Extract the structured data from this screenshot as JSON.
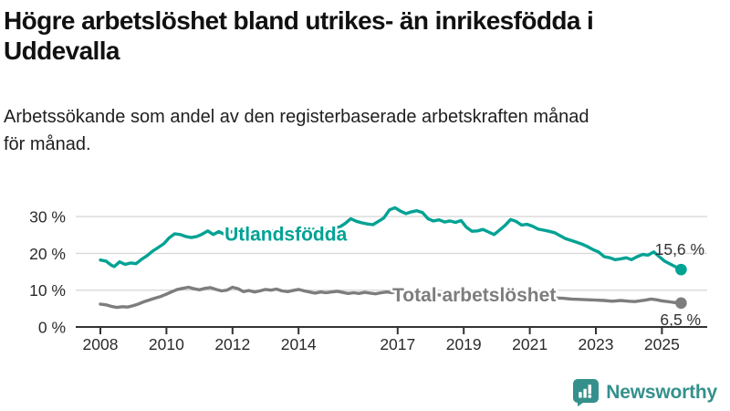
{
  "header": {
    "title_lines": [
      "Högre arbetslöshet bland utrikes- än inrikesfödda i",
      "Uddevalla"
    ],
    "subtitle_lines": [
      "Arbetssökande som andel av den registerbaserade arbetskraften månad",
      "för månad."
    ]
  },
  "branding": {
    "logo_text": "Newsworthy",
    "logo_icon": "bar-chart-speech-bubble-icon",
    "logo_color": "#35908c"
  },
  "colors": {
    "utlandsfodda_line": "#00a294",
    "total_line": "#7d7d7d",
    "gridline": "#d9d9d9",
    "axis": "#333333",
    "tick_text": "#2b2b2b",
    "value_label_text": "#333333"
  },
  "chart_data": {
    "type": "line",
    "x_axis": {
      "base_year": 2008,
      "ticks": [
        2008,
        2010,
        2012,
        2014,
        2017,
        2019,
        2021,
        2023,
        2025
      ]
    },
    "y_axis": {
      "ticks": [
        0,
        10,
        20,
        30
      ],
      "suffix": " %",
      "range": [
        0,
        33.5
      ],
      "gridlines": true
    },
    "series": [
      {
        "name": "Utlandsfödda",
        "color": "#00a294",
        "label_pos": {
          "year": 2011.76,
          "value": 23.5
        },
        "end_value": 15.6,
        "end_label": "15,6 %",
        "end_label_anchor": {
          "year": 2026.29,
          "value": 19.6
        },
        "points": [
          [
            2008.0,
            18.2
          ],
          [
            2008.17,
            17.9
          ],
          [
            2008.33,
            16.8
          ],
          [
            2008.42,
            16.4
          ],
          [
            2008.58,
            17.7
          ],
          [
            2008.75,
            17.0
          ],
          [
            2008.92,
            17.4
          ],
          [
            2009.08,
            17.2
          ],
          [
            2009.25,
            18.4
          ],
          [
            2009.42,
            19.4
          ],
          [
            2009.58,
            20.6
          ],
          [
            2009.75,
            21.6
          ],
          [
            2009.92,
            22.6
          ],
          [
            2010.08,
            24.2
          ],
          [
            2010.25,
            25.3
          ],
          [
            2010.42,
            25.1
          ],
          [
            2010.58,
            24.6
          ],
          [
            2010.75,
            24.3
          ],
          [
            2010.92,
            24.6
          ],
          [
            2011.08,
            25.2
          ],
          [
            2011.25,
            26.1
          ],
          [
            2011.42,
            25.1
          ],
          [
            2011.58,
            25.9
          ],
          [
            2011.75,
            25.2
          ],
          [
            2011.92,
            25.7
          ],
          [
            2012.08,
            26.2
          ],
          [
            2012.25,
            25.7
          ],
          [
            2012.42,
            26.1
          ],
          [
            2012.58,
            25.7
          ],
          [
            2012.75,
            26.0
          ],
          [
            2012.92,
            25.7
          ],
          [
            2013.08,
            26.3
          ],
          [
            2013.25,
            26.0
          ],
          [
            2013.42,
            26.4
          ],
          [
            2013.58,
            25.9
          ],
          [
            2013.75,
            26.3
          ],
          [
            2013.92,
            26.0
          ],
          [
            2014.08,
            26.4
          ],
          [
            2014.25,
            26.1
          ],
          [
            2014.42,
            26.6
          ],
          [
            2014.58,
            26.2
          ],
          [
            2014.75,
            26.5
          ],
          [
            2014.92,
            26.3
          ],
          [
            2015.08,
            26.9
          ],
          [
            2015.25,
            27.2
          ],
          [
            2015.42,
            28.2
          ],
          [
            2015.58,
            29.4
          ],
          [
            2015.75,
            28.7
          ],
          [
            2015.92,
            28.3
          ],
          [
            2016.08,
            28.0
          ],
          [
            2016.25,
            27.8
          ],
          [
            2016.42,
            28.7
          ],
          [
            2016.58,
            29.6
          ],
          [
            2016.75,
            31.8
          ],
          [
            2016.92,
            32.4
          ],
          [
            2017.08,
            31.5
          ],
          [
            2017.25,
            30.8
          ],
          [
            2017.42,
            31.3
          ],
          [
            2017.58,
            31.6
          ],
          [
            2017.75,
            31.1
          ],
          [
            2017.92,
            29.4
          ],
          [
            2018.08,
            28.8
          ],
          [
            2018.25,
            29.1
          ],
          [
            2018.42,
            28.5
          ],
          [
            2018.58,
            28.8
          ],
          [
            2018.75,
            28.4
          ],
          [
            2018.92,
            28.9
          ],
          [
            2019.08,
            27.1
          ],
          [
            2019.25,
            26.0
          ],
          [
            2019.42,
            26.1
          ],
          [
            2019.58,
            26.5
          ],
          [
            2019.75,
            25.8
          ],
          [
            2019.92,
            25.1
          ],
          [
            2020.08,
            26.3
          ],
          [
            2020.25,
            27.6
          ],
          [
            2020.42,
            29.2
          ],
          [
            2020.58,
            28.7
          ],
          [
            2020.75,
            27.7
          ],
          [
            2020.92,
            27.9
          ],
          [
            2021.08,
            27.4
          ],
          [
            2021.25,
            26.6
          ],
          [
            2021.42,
            26.3
          ],
          [
            2021.58,
            26.0
          ],
          [
            2021.75,
            25.6
          ],
          [
            2021.92,
            24.8
          ],
          [
            2022.08,
            24.0
          ],
          [
            2022.25,
            23.5
          ],
          [
            2022.42,
            23.0
          ],
          [
            2022.58,
            22.5
          ],
          [
            2022.75,
            21.8
          ],
          [
            2022.92,
            21.0
          ],
          [
            2023.08,
            20.4
          ],
          [
            2023.25,
            19.1
          ],
          [
            2023.42,
            18.8
          ],
          [
            2023.58,
            18.3
          ],
          [
            2023.75,
            18.5
          ],
          [
            2023.92,
            18.8
          ],
          [
            2024.08,
            18.3
          ],
          [
            2024.25,
            19.1
          ],
          [
            2024.42,
            19.7
          ],
          [
            2024.58,
            19.5
          ],
          [
            2024.75,
            20.4
          ],
          [
            2024.92,
            19.1
          ],
          [
            2025.08,
            17.9
          ],
          [
            2025.25,
            17.1
          ],
          [
            2025.42,
            16.3
          ],
          [
            2025.58,
            15.6
          ]
        ]
      },
      {
        "name": "Total arbetslöshet",
        "color": "#7d7d7d",
        "label_pos": {
          "year": 2016.84,
          "value": 6.95
        },
        "end_value": 6.5,
        "end_label": "6,5 %",
        "end_label_anchor": {
          "year": 2026.18,
          "value": 0.5
        },
        "points": [
          [
            2008.0,
            6.2
          ],
          [
            2008.17,
            6.0
          ],
          [
            2008.33,
            5.6
          ],
          [
            2008.5,
            5.3
          ],
          [
            2008.67,
            5.5
          ],
          [
            2008.83,
            5.4
          ],
          [
            2009.0,
            5.8
          ],
          [
            2009.17,
            6.3
          ],
          [
            2009.33,
            6.9
          ],
          [
            2009.5,
            7.4
          ],
          [
            2009.67,
            7.9
          ],
          [
            2009.83,
            8.3
          ],
          [
            2010.0,
            8.9
          ],
          [
            2010.17,
            9.6
          ],
          [
            2010.33,
            10.2
          ],
          [
            2010.5,
            10.5
          ],
          [
            2010.67,
            10.8
          ],
          [
            2010.83,
            10.4
          ],
          [
            2011.0,
            10.1
          ],
          [
            2011.17,
            10.5
          ],
          [
            2011.33,
            10.7
          ],
          [
            2011.5,
            10.2
          ],
          [
            2011.67,
            9.8
          ],
          [
            2011.83,
            10.0
          ],
          [
            2012.0,
            10.8
          ],
          [
            2012.17,
            10.4
          ],
          [
            2012.33,
            9.6
          ],
          [
            2012.5,
            9.9
          ],
          [
            2012.67,
            9.5
          ],
          [
            2012.83,
            9.8
          ],
          [
            2013.0,
            10.2
          ],
          [
            2013.17,
            10.0
          ],
          [
            2013.33,
            10.3
          ],
          [
            2013.5,
            9.8
          ],
          [
            2013.67,
            9.6
          ],
          [
            2013.83,
            9.9
          ],
          [
            2014.0,
            10.2
          ],
          [
            2014.17,
            9.8
          ],
          [
            2014.33,
            9.5
          ],
          [
            2014.5,
            9.2
          ],
          [
            2014.67,
            9.5
          ],
          [
            2014.83,
            9.3
          ],
          [
            2015.0,
            9.5
          ],
          [
            2015.17,
            9.7
          ],
          [
            2015.33,
            9.4
          ],
          [
            2015.5,
            9.1
          ],
          [
            2015.67,
            9.3
          ],
          [
            2015.83,
            9.1
          ],
          [
            2016.0,
            9.4
          ],
          [
            2016.17,
            9.2
          ],
          [
            2016.33,
            9.0
          ],
          [
            2016.5,
            9.3
          ],
          [
            2016.67,
            9.5
          ],
          [
            2016.83,
            9.3
          ],
          [
            2017.0,
            9.8
          ],
          [
            2017.17,
            9.6
          ],
          [
            2017.33,
            9.4
          ],
          [
            2017.5,
            9.2
          ],
          [
            2017.75,
            9.0
          ],
          [
            2018.0,
            8.9
          ],
          [
            2018.25,
            8.7
          ],
          [
            2018.5,
            8.5
          ],
          [
            2018.75,
            8.3
          ],
          [
            2019.0,
            8.2
          ],
          [
            2019.25,
            8.0
          ],
          [
            2019.5,
            7.9
          ],
          [
            2019.75,
            7.8
          ],
          [
            2020.0,
            8.2
          ],
          [
            2020.25,
            8.8
          ],
          [
            2020.5,
            9.2
          ],
          [
            2020.75,
            8.9
          ],
          [
            2021.0,
            8.7
          ],
          [
            2021.25,
            8.4
          ],
          [
            2021.5,
            8.1
          ],
          [
            2021.75,
            7.9
          ],
          [
            2022.0,
            7.8
          ],
          [
            2022.25,
            7.6
          ],
          [
            2022.5,
            7.5
          ],
          [
            2022.75,
            7.4
          ],
          [
            2023.0,
            7.3
          ],
          [
            2023.25,
            7.2
          ],
          [
            2023.5,
            7.0
          ],
          [
            2023.75,
            7.2
          ],
          [
            2024.0,
            7.0
          ],
          [
            2024.17,
            6.9
          ],
          [
            2024.33,
            7.1
          ],
          [
            2024.5,
            7.3
          ],
          [
            2024.67,
            7.6
          ],
          [
            2024.83,
            7.4
          ],
          [
            2025.0,
            7.1
          ],
          [
            2025.17,
            6.9
          ],
          [
            2025.33,
            6.7
          ],
          [
            2025.58,
            6.5
          ]
        ]
      }
    ]
  }
}
